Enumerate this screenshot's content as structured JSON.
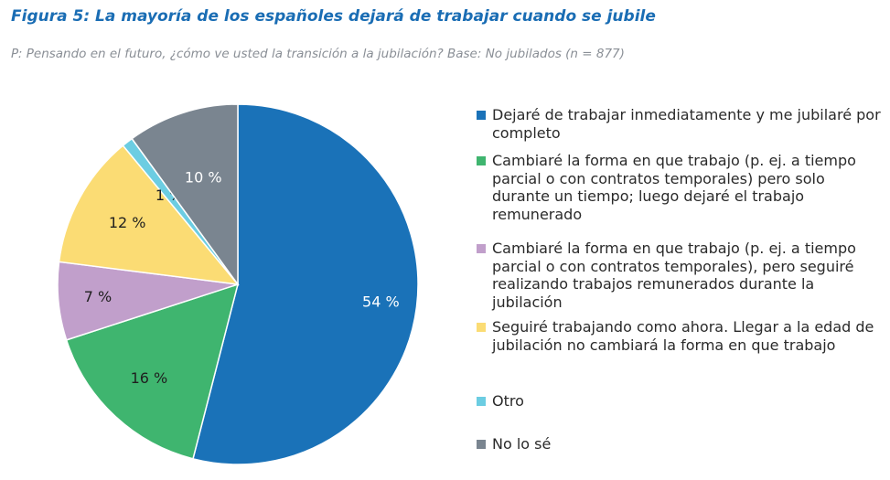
{
  "title": "Figura 5: La mayoría de los españoles dejará de trabajar cuando se jubile",
  "subtitle": "P: Pensando en el futuro, ¿cómo ve usted la transición a la jubilación? Base: No jubilados (n = 877)",
  "chart_data": {
    "type": "pie",
    "title": "Figura 5: La mayoría de los españoles dejará de trabajar cuando se jubile",
    "start": "12 o'clock, clockwise",
    "legend_position": "right",
    "slices": [
      {
        "name": "Dejaré de trabajar inmediatamente y me jubilaré por completo",
        "value": 54,
        "label": "54 %",
        "color": "#1a72b8",
        "label_color": "#ffffff"
      },
      {
        "name": "Cambiaré la forma en que trabajo (p. ej. a tiempo parcial o con contratos temporales) pero solo durante un tiempo; luego dejaré el trabajo remunerado",
        "value": 16,
        "label": "16 %",
        "color": "#3fb56f",
        "label_color": "#1f1f1f"
      },
      {
        "name": "Cambiaré la forma en que trabajo (p. ej. a tiempo parcial o con contratos temporales), pero seguiré realizando trabajos remunerados durante la jubilación",
        "value": 7,
        "label": "7 %",
        "color": "#c19fcb",
        "label_color": "#1f1f1f"
      },
      {
        "name": "Seguiré trabajando como ahora. Llegar a la edad de jubilación no cambiará la forma en que trabajo",
        "value": 12,
        "label": "12 %",
        "color": "#fbdc74",
        "label_color": "#1f1f1f"
      },
      {
        "name": "Otro",
        "value": 1,
        "label": "1 %",
        "color": "#6ccde2",
        "label_color": "#1f1f1f"
      },
      {
        "name": "No lo sé",
        "value": 10,
        "label": "10 %",
        "color": "#7a8590",
        "label_color": "#ffffff"
      }
    ]
  }
}
